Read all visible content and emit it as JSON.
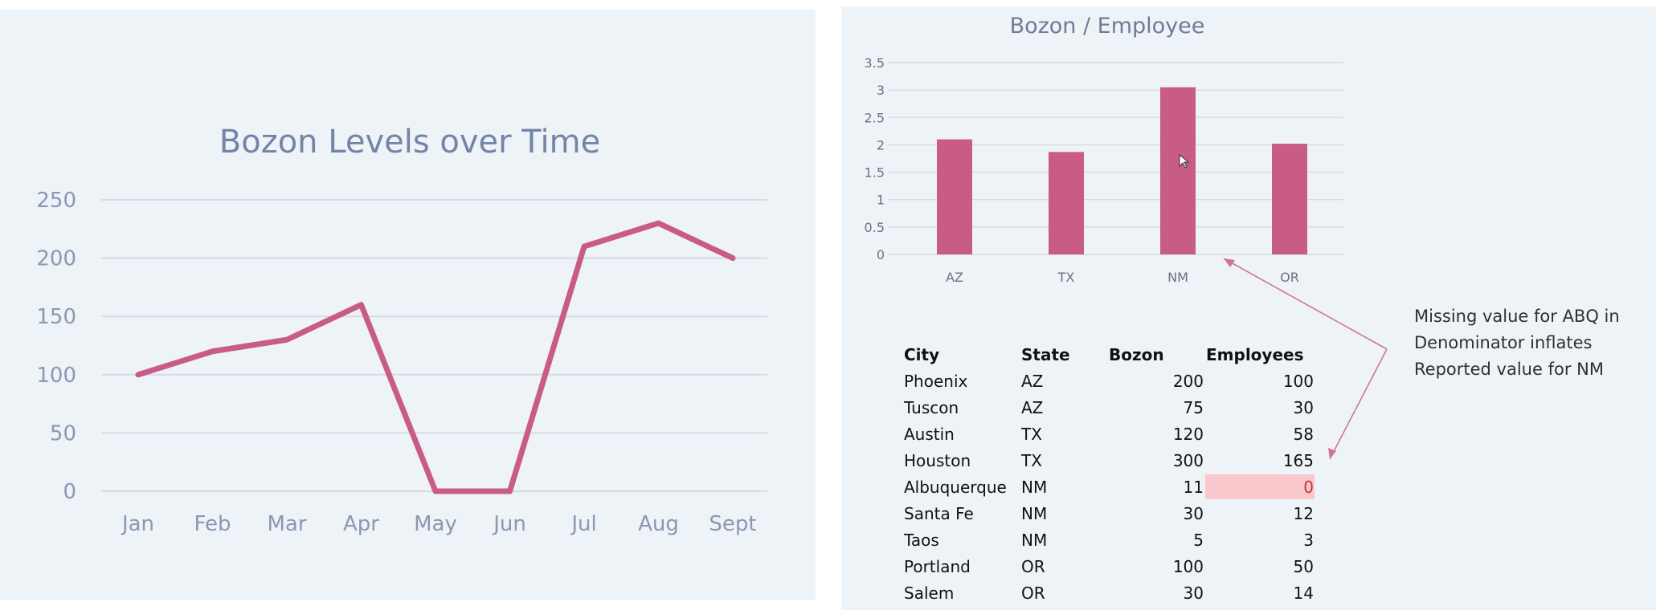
{
  "chart_data": [
    {
      "type": "line",
      "title": "Bozon Levels over Time",
      "categories": [
        "Jan",
        "Feb",
        "Mar",
        "Apr",
        "May",
        "Jun",
        "Jul",
        "Aug",
        "Sept"
      ],
      "values": [
        100,
        120,
        130,
        160,
        0,
        0,
        210,
        230,
        200
      ],
      "y_ticks": [
        "0",
        "50",
        "100",
        "150",
        "200",
        "250"
      ],
      "ylim": [
        0,
        250
      ],
      "grid": true,
      "color": "#c95b87"
    },
    {
      "type": "bar",
      "title": "Bozon / Employee",
      "categories": [
        "AZ",
        "TX",
        "NM",
        "OR"
      ],
      "values": [
        2.1,
        1.87,
        3.05,
        2.02
      ],
      "y_ticks": [
        "0",
        "0.5",
        "1",
        "1.5",
        "2",
        "2.5",
        "3",
        "3.5"
      ],
      "ylim": [
        0,
        3.5
      ],
      "grid": true,
      "color": "#c95b87"
    }
  ],
  "table": {
    "headers": [
      "City",
      "State",
      "Bozon",
      "Employees"
    ],
    "rows": [
      [
        "Phoenix",
        "AZ",
        "200",
        "100"
      ],
      [
        "Tuscon",
        "AZ",
        "75",
        "30"
      ],
      [
        "Austin",
        "TX",
        "120",
        "58"
      ],
      [
        "Houston",
        "TX",
        "300",
        "165"
      ],
      [
        "Albuquerque",
        "NM",
        "11",
        "0"
      ],
      [
        "Santa Fe",
        "NM",
        "30",
        "12"
      ],
      [
        "Taos",
        "NM",
        "5",
        "3"
      ],
      [
        "Portland",
        "OR",
        "100",
        "50"
      ],
      [
        "Salem",
        "OR",
        "30",
        "14"
      ]
    ],
    "highlight_row": 4,
    "highlight_color": "#f8c8cc",
    "highlight_text_color": "#c0392b"
  },
  "annotation": {
    "lines": [
      "Missing value for ABQ in",
      "Denominator inflates",
      "Reported value for NM"
    ],
    "arrow_color": "#d0739a"
  }
}
